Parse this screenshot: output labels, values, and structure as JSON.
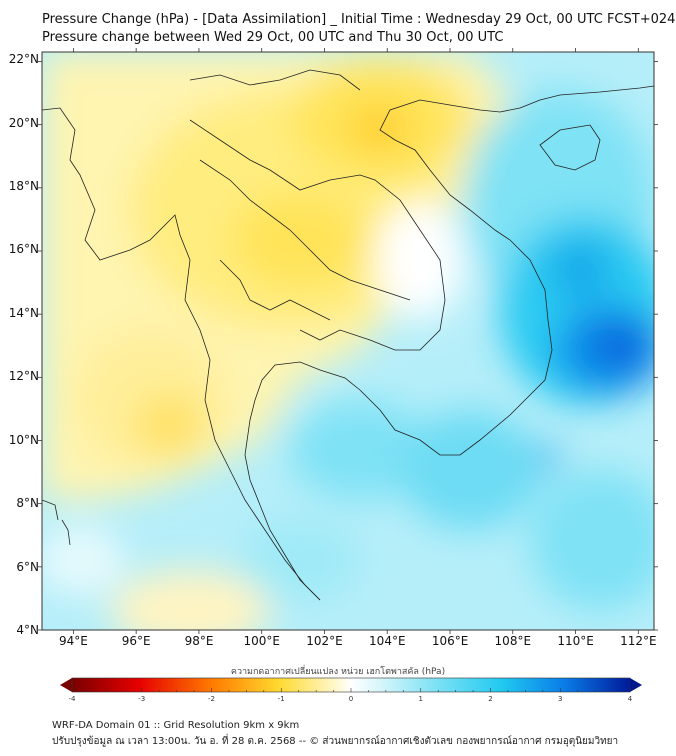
{
  "header": {
    "title": "Pressure Change (hPa) - [Data Assimilation] _ Initial Time : Wednesday 29 Oct, 00 UTC FCST+024",
    "subtitle": "Pressure change between Wed 29 Oct, 00 UTC and Thu 30 Oct, 00 UTC"
  },
  "map": {
    "lon_labels": [
      "94°E",
      "96°E",
      "98°E",
      "100°E",
      "102°E",
      "104°E",
      "106°E",
      "108°E",
      "110°E",
      "112°E"
    ],
    "lat_labels": [
      "22°N",
      "20°N",
      "18°N",
      "16°N",
      "14°N",
      "12°N",
      "10°N",
      "8°N",
      "6°N",
      "4°N"
    ],
    "lon_range": [
      93,
      112.5
    ],
    "lat_range": [
      4,
      22.3
    ]
  },
  "colorbar": {
    "label": "ความกดอากาศเปลี่ยนแปลง หน่วย เฮกโตพาสคัล (hPa)",
    "tick_labels": [
      "-4",
      "-3",
      "-2",
      "-1",
      "0",
      "1",
      "2",
      "3",
      "4"
    ],
    "range": [
      -4,
      4
    ],
    "colors": {
      "neg_dark": "#8b0000",
      "neg_mid": "#ff2a00",
      "neg_light": "#ffd92f",
      "zero": "#ffffff",
      "pos_light": "#9eeaf7",
      "pos_mid": "#22c9f0",
      "pos_dark": "#001aa8"
    }
  },
  "footer": {
    "line1": "WRF-DA Domain 01 :: Grid Resolution 9km x 9km",
    "line2": "ปรับปรุงข้อมูล ณ เวลา 13:00น. วัน อ. ที่ 28 ต.ค. 2568 -- © ส่วนพยากรณ์อากาศเชิงตัวเลข กองพยากรณ์อากาศ กรมอุตุนิยมวิทยา"
  }
}
